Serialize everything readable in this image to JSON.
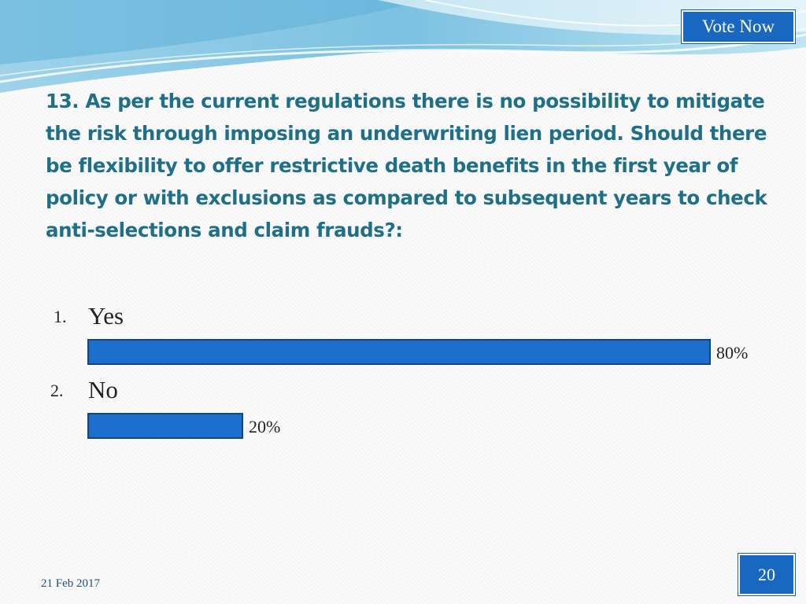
{
  "header": {
    "vote_button_label": "Vote Now"
  },
  "question": "13. As per the current regulations there is no possibility to mitigate the risk through imposing an underwriting lien period. Should there be flexibility to offer restrictive death benefits in the first year of policy or with exclusions as compared to subsequent years to check anti-selections and claim frauds?:",
  "chart_data": {
    "type": "bar",
    "orientation": "horizontal",
    "categories": [
      "Yes",
      "No"
    ],
    "numbers": [
      "1.",
      "2."
    ],
    "values": [
      80,
      20
    ],
    "value_labels": [
      "80%",
      "20%"
    ],
    "xlim": [
      0,
      100
    ],
    "grid": false,
    "bar_color": "#1c6fcc"
  },
  "footer": {
    "date": "21 Feb 2017",
    "page_number": "20"
  }
}
